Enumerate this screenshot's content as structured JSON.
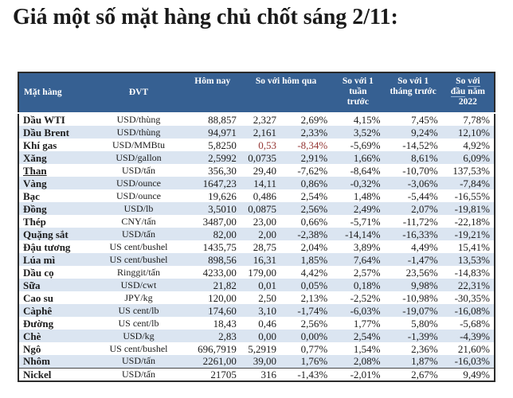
{
  "colors": {
    "header_bg": "#366092",
    "stripe": "#dbe5f1",
    "negative_red": "#953735",
    "header_underline": "#9cb8dc"
  },
  "header_display": {
    "commodity": "Mặt hàng",
    "unit": "ĐVT",
    "today": "Hôm nay",
    "vs_yesterday": "So với hôm qua",
    "vs_week": "So với 1\ntuần\ntrước",
    "vs_month": "So với 1\ntháng trước",
    "vs_start_2022": {
      "l1_plain": "So ",
      "l1_underline": "với",
      "l2_underline": "đầu",
      "l2_plain": " năm",
      "l3": "2022"
    }
  },
  "chart_data": {
    "type": "table",
    "title": "Giá một số mặt hàng chủ chốt sáng 2/11:",
    "columns": [
      "Mặt hàng",
      "ĐVT",
      "Hôm nay",
      "So với hôm qua",
      "So với 1 tuần trước",
      "So với 1 tháng trước",
      "So với đầu năm 2022"
    ],
    "column_keys": [
      "commodity",
      "unit",
      "today",
      "change",
      "change_pct",
      "vs_week",
      "vs_month",
      "vs_start_2022"
    ],
    "rows": [
      {
        "commodity": "Dầu WTI",
        "unit": "USD/thùng",
        "today": "88,857",
        "change": "2,327",
        "change_pct": "2,69%",
        "vs_week": "4,15%",
        "vs_month": "7,45%",
        "vs_start_2022": "7,78%"
      },
      {
        "commodity": "Dầu Brent",
        "unit": "USD/thùng",
        "today": "94,971",
        "change": "2,161",
        "change_pct": "2,33%",
        "vs_week": "3,52%",
        "vs_month": "9,24%",
        "vs_start_2022": "12,10%"
      },
      {
        "commodity": "Khí gas",
        "unit": "USD/MMBtu",
        "today": "5,8250",
        "change": "0,53",
        "change_pct": "-8,34%",
        "vs_week": "-5,69%",
        "vs_month": "-14,52%",
        "vs_start_2022": "4,92%",
        "red_cells": [
          "change",
          "change_pct"
        ]
      },
      {
        "commodity": "Xăng",
        "unit": "USD/gallon",
        "today": "2,5992",
        "change": "0,0735",
        "change_pct": "2,91%",
        "vs_week": "1,66%",
        "vs_month": "8,61%",
        "vs_start_2022": "6,09%"
      },
      {
        "commodity": "Than",
        "underline": true,
        "unit": "USD/tấn",
        "today": "356,30",
        "change": "29,40",
        "change_pct": "-7,62%",
        "vs_week": "-8,64%",
        "vs_month": "-10,70%",
        "vs_start_2022": "137,53%"
      },
      {
        "commodity": "Vàng",
        "unit": "USD/ounce",
        "today": "1647,23",
        "change": "14,11",
        "change_pct": "0,86%",
        "vs_week": "-0,32%",
        "vs_month": "-3,06%",
        "vs_start_2022": "-7,84%"
      },
      {
        "commodity": "Bạc",
        "unit": "USD/ounce",
        "today": "19,626",
        "change": "0,486",
        "change_pct": "2,54%",
        "vs_week": "1,48%",
        "vs_month": "-5,44%",
        "vs_start_2022": "-16,55%"
      },
      {
        "commodity": "Đồng",
        "unit": "USD/lb",
        "today": "3,5010",
        "change": "0,0875",
        "change_pct": "2,56%",
        "vs_week": "2,49%",
        "vs_month": "2,07%",
        "vs_start_2022": "-19,81%"
      },
      {
        "commodity": "Thép",
        "unit": "CNY/tấn",
        "today": "3487,00",
        "change": "23,00",
        "change_pct": "0,66%",
        "vs_week": "-5,71%",
        "vs_month": "-11,72%",
        "vs_start_2022": "-22,18%"
      },
      {
        "commodity": "Quặng sắt",
        "unit": "USD/tấn",
        "today": "82,00",
        "change": "2,00",
        "change_pct": "-2,38%",
        "vs_week": "-14,14%",
        "vs_month": "-16,33%",
        "vs_start_2022": "-19,21%"
      },
      {
        "commodity": "Đậu tương",
        "unit": "US cent/bushel",
        "today": "1435,75",
        "change": "28,75",
        "change_pct": "2,04%",
        "vs_week": "3,89%",
        "vs_month": "4,49%",
        "vs_start_2022": "15,41%"
      },
      {
        "commodity": "Lúa mì",
        "unit": "US cent/bushel",
        "today": "898,56",
        "change": "16,31",
        "change_pct": "1,85%",
        "vs_week": "7,64%",
        "vs_month": "-1,47%",
        "vs_start_2022": "13,53%"
      },
      {
        "commodity": "Dầu cọ",
        "unit": "Ringgit/tấn",
        "today": "4233,00",
        "change": "179,00",
        "change_pct": "4,42%",
        "vs_week": "2,57%",
        "vs_month": "23,56%",
        "vs_start_2022": "-14,83%"
      },
      {
        "commodity": "Sữa",
        "unit": "USD/cwt",
        "today": "21,82",
        "change": "0,01",
        "change_pct": "0,05%",
        "vs_week": "0,18%",
        "vs_month": "9,98%",
        "vs_start_2022": "22,31%"
      },
      {
        "commodity": "Cao su",
        "unit": "JPY/kg",
        "today": "120,00",
        "change": "2,50",
        "change_pct": "2,13%",
        "vs_week": "-2,52%",
        "vs_month": "-10,98%",
        "vs_start_2022": "-30,35%"
      },
      {
        "commodity": "Càphê",
        "unit": "US cent/lb",
        "today": "174,60",
        "change": "3,10",
        "change_pct": "-1,74%",
        "vs_week": "-6,03%",
        "vs_month": "-19,07%",
        "vs_start_2022": "-16,08%"
      },
      {
        "commodity": "Đường",
        "unit": "US cent/lb",
        "today": "18,43",
        "change": "0,46",
        "change_pct": "2,56%",
        "vs_week": "1,77%",
        "vs_month": "5,80%",
        "vs_start_2022": "-5,68%"
      },
      {
        "commodity": "Chè",
        "unit": "USD/kg",
        "today": "2,83",
        "change": "0,00",
        "change_pct": "0,00%",
        "vs_week": "2,54%",
        "vs_month": "-1,39%",
        "vs_start_2022": "-4,39%"
      },
      {
        "commodity": "Ngô",
        "unit": "US cent/bushel",
        "today": "696,7919",
        "change": "5,2919",
        "change_pct": "0,77%",
        "vs_week": "1,54%",
        "vs_month": "2,36%",
        "vs_start_2022": "21,60%"
      },
      {
        "commodity": "Nhôm",
        "unit": "USD/tấn",
        "today": "2261,00",
        "change": "39,00",
        "change_pct": "1,76%",
        "vs_week": "2,08%",
        "vs_month": "1,87%",
        "vs_start_2022": "-16,03%"
      },
      {
        "commodity": "Nickel",
        "unit": "USD/tấn",
        "today": "21705",
        "change": "316",
        "change_pct": "-1,43%",
        "vs_week": "-2,01%",
        "vs_month": "2,67%",
        "vs_start_2022": "9,49%"
      }
    ]
  }
}
